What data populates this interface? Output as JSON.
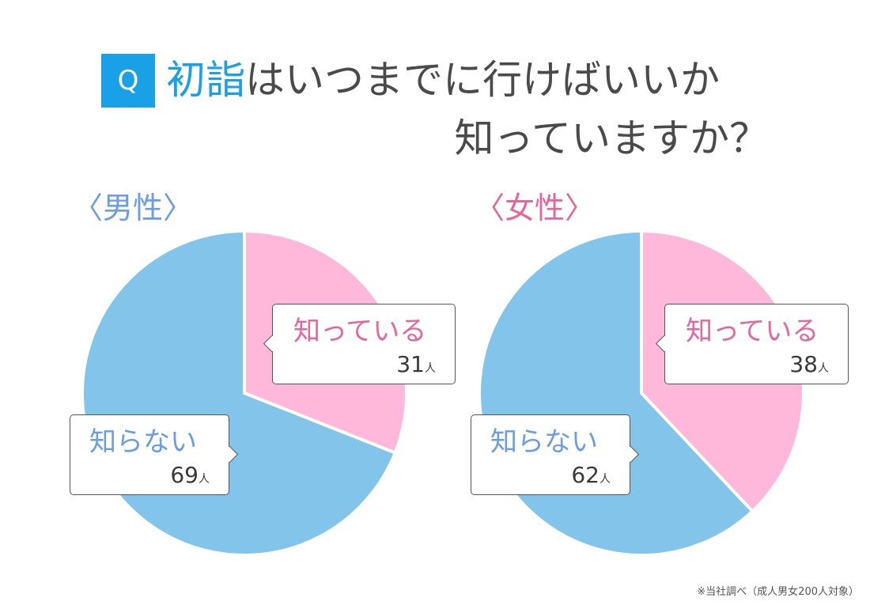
{
  "header": {
    "badge": "Q",
    "title_keyword": "初詣",
    "title_rest_line1": "はいつまでに行けばいいか",
    "title_line2": "知っていますか？"
  },
  "groups": [
    {
      "label": "〈男性〉",
      "label_color": "#6a9de3",
      "known": {
        "label": "知っている",
        "count": "31",
        "unit": "人"
      },
      "unknown": {
        "label": "知らない",
        "count": "69",
        "unit": "人"
      }
    },
    {
      "label": "〈女性〉",
      "label_color": "#e8659c",
      "known": {
        "label": "知っている",
        "count": "38",
        "unit": "人"
      },
      "unknown": {
        "label": "知らない",
        "count": "62",
        "unit": "人"
      }
    }
  ],
  "colors": {
    "accent": "#1aa0e6",
    "known_slice": "#ffb8d9",
    "unknown_slice": "#82c4ea",
    "known_text": "#e8659c",
    "unknown_text": "#6a9de3"
  },
  "footnote": "※当社調べ（成人男女200人対象）",
  "chart_data": [
    {
      "type": "pie",
      "title": "〈男性〉",
      "categories": [
        "知っている",
        "知らない"
      ],
      "values": [
        31,
        69
      ],
      "unit": "人"
    },
    {
      "type": "pie",
      "title": "〈女性〉",
      "categories": [
        "知っている",
        "知らない"
      ],
      "values": [
        38,
        62
      ],
      "unit": "人"
    }
  ]
}
